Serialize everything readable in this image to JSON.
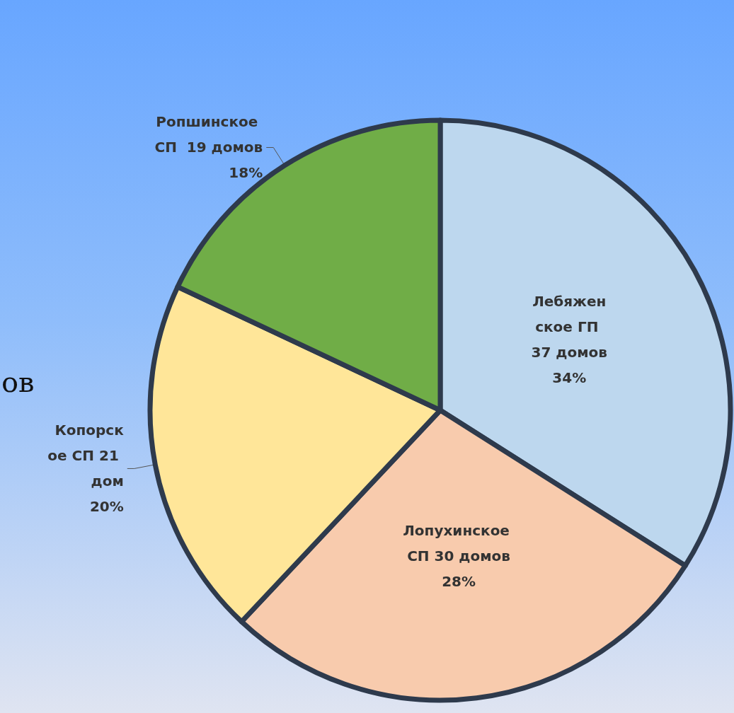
{
  "chart_data": {
    "type": "pie",
    "categories": [
      "Лебяженское ГП 37 домов",
      "Лопухинское СП 30 домов",
      "Копорское СП 21 дом",
      "Ропшинское СП  19 домов"
    ],
    "values": [
      34,
      28,
      20,
      18
    ],
    "value_labels": [
      "34%",
      "28%",
      "20%",
      "18%"
    ],
    "colors": [
      "#bdd7ee",
      "#f8cbad",
      "#ffe699",
      "#70ad47"
    ],
    "annotations": [
      "ов"
    ]
  }
}
